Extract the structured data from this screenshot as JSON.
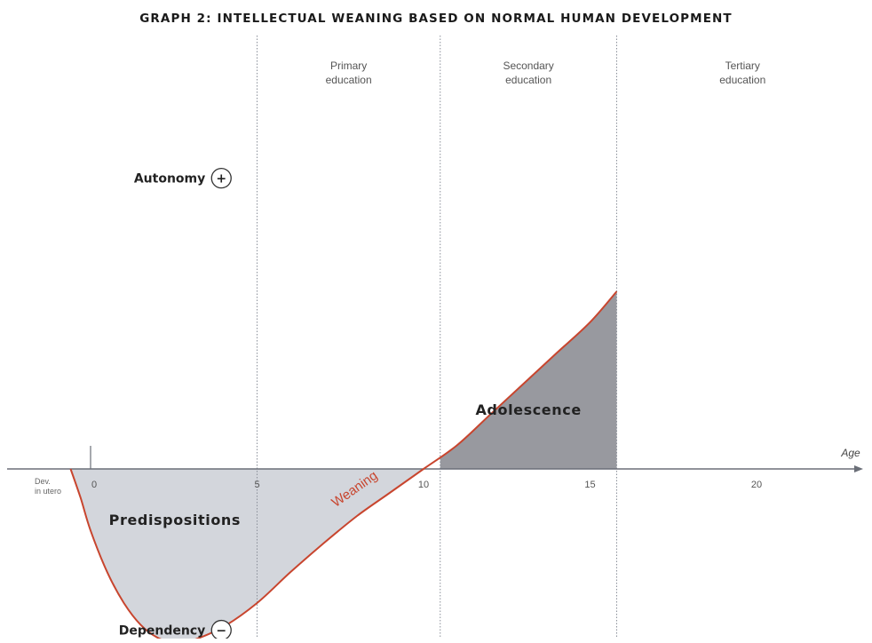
{
  "chart_data": {
    "type": "area",
    "title": "GRAPH 2: INTELLECTUAL WEANING BASED ON NORMAL HUMAN DEVELOPMENT",
    "xlabel": "Age",
    "y_top_label": "Autonomy",
    "y_top_sign": "+",
    "y_bottom_label": "Dependency",
    "y_bottom_sign": "−",
    "xlim": [
      -1.5,
      24
    ],
    "ylim": [
      -100,
      160
    ],
    "ticks": [
      {
        "value": 0,
        "label": "0"
      },
      {
        "value": 5,
        "label": "5"
      },
      {
        "value": 10,
        "label": "10"
      },
      {
        "value": 15,
        "label": "15"
      },
      {
        "value": 20,
        "label": "20"
      }
    ],
    "pre_birth_label": [
      "Dev.",
      "in utero"
    ],
    "bands": [
      {
        "boundary_x": 5,
        "label": [
          "Primary",
          "education"
        ]
      },
      {
        "boundary_x": 10.5,
        "label": [
          "Secondary",
          "education"
        ]
      },
      {
        "boundary_x": 15.8,
        "label": [
          "Tertiary",
          "education"
        ]
      }
    ],
    "series": [
      {
        "name": "Weaning",
        "x": [
          -0.6,
          -0.3,
          0,
          0.5,
          1,
          1.5,
          2,
          2.5,
          3,
          4,
          5,
          6,
          7,
          8,
          9,
          10,
          11,
          12,
          13,
          14,
          15,
          15.8
        ],
        "y": [
          0,
          -16,
          -34,
          -57,
          -74,
          -86,
          -93,
          -96,
          -95,
          -87,
          -74,
          -57,
          -41,
          -26,
          -13,
          0,
          13,
          30,
          47,
          64,
          81,
          98
        ]
      }
    ],
    "regions": [
      {
        "label": "Predispositions",
        "x_range": [
          -0.6,
          10
        ],
        "fill": "#d3d6dc"
      },
      {
        "label": "Adolescence",
        "x_range": [
          10.5,
          15.8
        ],
        "fill": "#98999f"
      }
    ],
    "curve_color": "#c8452e",
    "grid": false
  }
}
